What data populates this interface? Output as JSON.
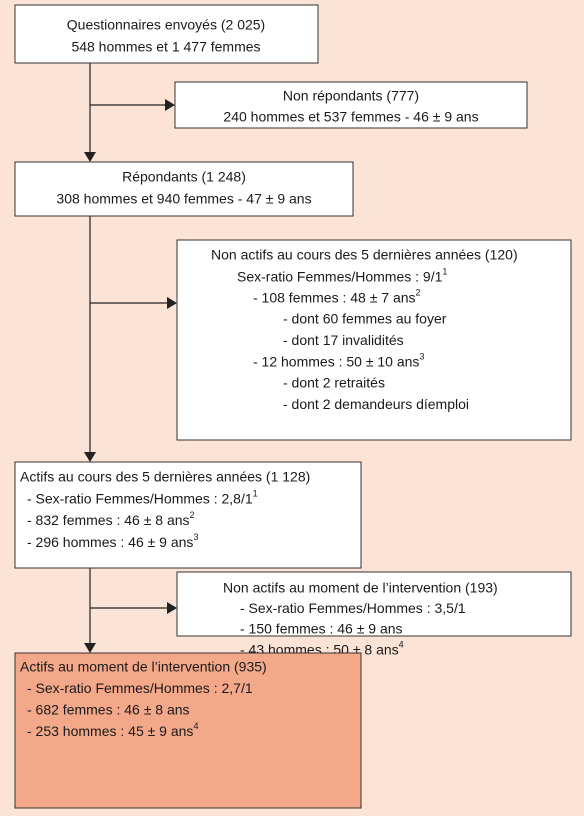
{
  "nodes": [
    {
      "lines": [
        "Questionnaires envoyés (2 025)",
        "548 hommes et 1 477 femmes"
      ]
    },
    {
      "lines": [
        "Non répondants (777)",
        "240 hommes et 537 femmes - 46 ± 9 ans"
      ]
    },
    {
      "lines": [
        "Répondants (1 248)",
        "308 hommes et 940 femmes - 47 ± 9 ans"
      ]
    },
    {
      "lines": [
        "Non actifs au cours des 5 dernières années (120)",
        {
          "text": "Sex-ratio Femmes/Hommes : 9/1",
          "note": "1"
        },
        {
          "text": "- 108 femmes : 48 ± 7 ans",
          "note": "2"
        },
        "- dont 60 femmes au foyer",
        "- dont 17 invalidités",
        {
          "text": "- 12 hommes : 50 ± 10 ans",
          "note": "3"
        },
        "- dont 2 retraités",
        "- dont 2 demandeurs díemploi"
      ]
    },
    {
      "lines": [
        "Actifs au cours des 5 dernières années (1 128)",
        {
          "text": "- Sex-ratio Femmes/Hommes : 2,8/1",
          "note": "1"
        },
        {
          "text": "- 832 femmes : 46 ± 8 ans",
          "note": "2"
        },
        {
          "text": "- 296 hommes : 46 ± 9 ans",
          "note": "3"
        }
      ]
    },
    {
      "lines": [
        "Non actifs au moment de l’intervention (193)",
        "- Sex-ratio Femmes/Hommes : 3,5/1",
        "- 150 femmes : 46 ± 9 ans",
        {
          "text": "- 43 hommes : 50 ± 8 ans",
          "note": "4"
        }
      ]
    },
    {
      "lines": [
        "Actifs au moment de l’intervention (935)",
        "- Sex-ratio Femmes/Hommes : 2,7/1",
        "- 682 femmes : 46 ± 8 ans",
        {
          "text": "- 253 hommes : 45 ± 9 ans",
          "note": "4"
        }
      ]
    }
  ]
}
